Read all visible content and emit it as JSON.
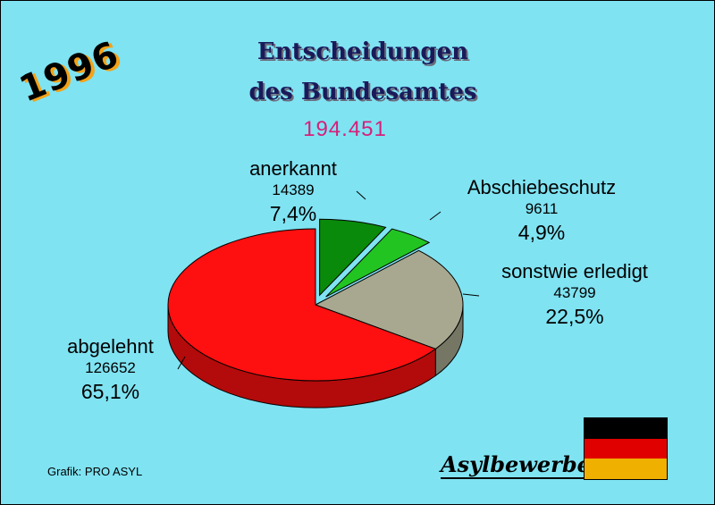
{
  "header": {
    "year": "1996",
    "title_line1": "Entscheidungen",
    "title_line2": "des Bundesamtes",
    "total": "194.451"
  },
  "footer": {
    "credit": "Grafik: PRO ASYL",
    "brand": "Asylbewerber"
  },
  "flag": {
    "stripes": [
      "#000000",
      "#e00000",
      "#f0b000"
    ]
  },
  "chart_data": {
    "type": "pie",
    "title": "Entscheidungen des Bundesamtes",
    "total": "194.451",
    "slices": [
      {
        "label": "anerkannt",
        "value": 14389,
        "percent": "7,4%",
        "color": "#0a8a0a",
        "exploded": true
      },
      {
        "label": "Abschiebeschutz",
        "value": 9611,
        "percent": "4,9%",
        "color": "#22c422",
        "exploded": true
      },
      {
        "label": "sonstwie erledigt",
        "value": 43799,
        "percent": "22,5%",
        "color": "#a8a890",
        "exploded": false
      },
      {
        "label": "abgelehnt",
        "value": 126652,
        "percent": "65,1%",
        "color": "#ff1010",
        "exploded": false
      }
    ]
  }
}
